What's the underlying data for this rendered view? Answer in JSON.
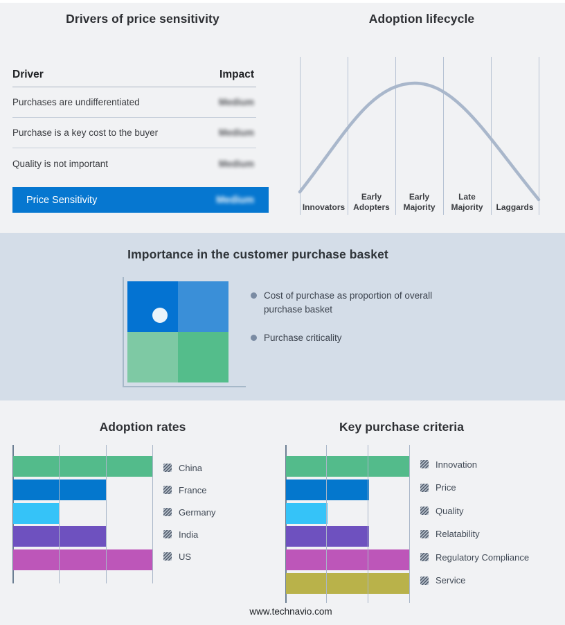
{
  "page": {
    "background": "#f1f2f4",
    "band_background": "#d4dde8",
    "footer": "www.technavio.com"
  },
  "drivers_table": {
    "title": "Drivers of price sensitivity",
    "columns": {
      "driver": "Driver",
      "impact": "Impact"
    },
    "rows": [
      {
        "driver": "Purchases are undifferentiated",
        "impact": "Medium",
        "impact_redacted": true
      },
      {
        "driver": "Purchase is a key cost to the buyer",
        "impact": "Medium",
        "impact_redacted": true
      },
      {
        "driver": "Quality is not important",
        "impact": "Medium",
        "impact_redacted": true
      }
    ],
    "summary_row": {
      "label": "Price Sensitivity",
      "impact": "Medium",
      "impact_redacted": true,
      "background": "#0677d0"
    }
  },
  "purchase_basket": {
    "title": "Importance in the customer purchase basket",
    "bullets": [
      "Cost of purchase as proportion of overall purchase basket",
      "Purchase criticality"
    ],
    "quadrant_colors": {
      "top_left": "#0473d2",
      "top_right": "#3a8fd8",
      "bottom_left": "#7ec9a4",
      "bottom_right": "#54bd8b"
    },
    "marker_color": "#eaf3fa"
  },
  "chart_data": [
    {
      "id": "adoption-lifecycle",
      "type": "line",
      "title": "Adoption lifecycle",
      "categories": [
        "Innovators",
        "Early Adopters",
        "Early Majority",
        "Late Majority",
        "Laggards"
      ],
      "shape": "bell curve rising from Innovators, peaking at Early Majority, falling through Laggards",
      "values_shown": false,
      "curve_color": "#a9b7cb",
      "gridline_color": "#b6c2d3"
    },
    {
      "id": "adoption-rates",
      "type": "bar",
      "orientation": "horizontal",
      "title": "Adoption rates",
      "categories": [
        "China",
        "France",
        "Germany",
        "India",
        "US"
      ],
      "values": [
        3,
        2,
        1,
        2,
        3
      ],
      "colors": [
        "#53bb8b",
        "#0477cd",
        "#35c3f8",
        "#6e51bf",
        "#bd56b9"
      ],
      "xlim": [
        0,
        3
      ],
      "grid": true,
      "legend_position": "right",
      "value_labels_shown": false
    },
    {
      "id": "key-purchase-criteria",
      "type": "bar",
      "orientation": "horizontal",
      "title": "Key purchase criteria",
      "categories": [
        "Innovation",
        "Price",
        "Quality",
        "Relatability",
        "Regulatory Compliance",
        "Service"
      ],
      "values": [
        3,
        2,
        1,
        2,
        3,
        3
      ],
      "colors": [
        "#53bb8b",
        "#0477cd",
        "#35c3f8",
        "#6e51bf",
        "#bd56b9",
        "#b9b24a"
      ],
      "xlim": [
        0,
        3
      ],
      "grid": true,
      "legend_position": "right",
      "value_labels_shown": false
    }
  ]
}
